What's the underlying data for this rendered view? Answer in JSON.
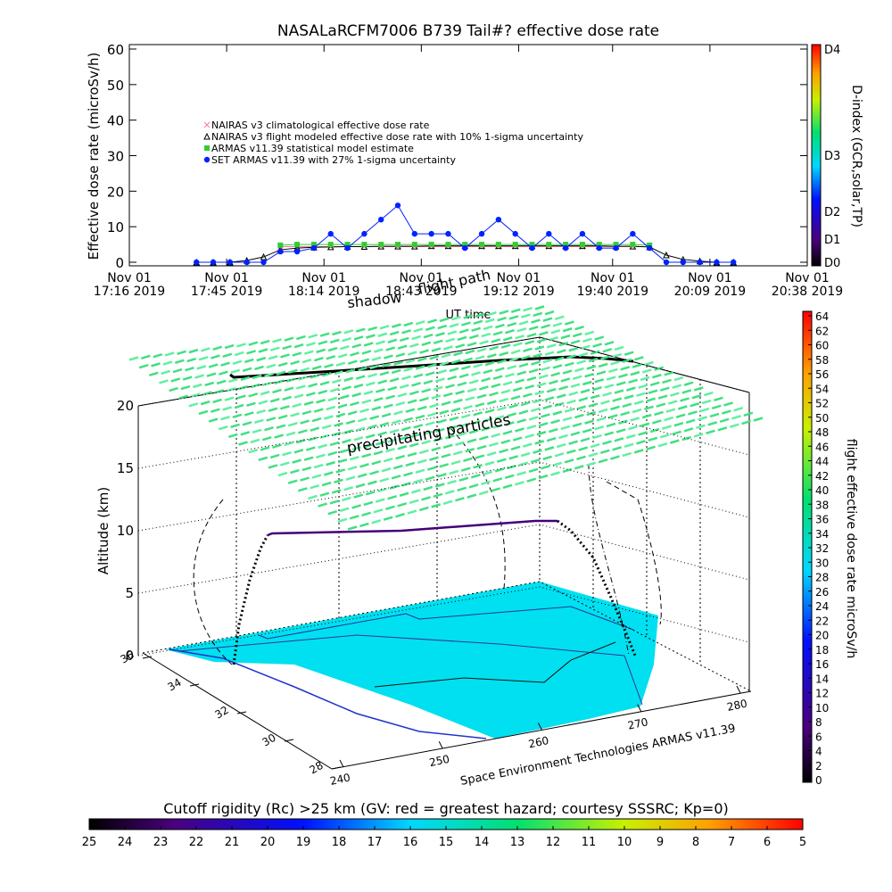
{
  "chart_data": [
    {
      "type": "line",
      "title": "NASALaRCFM7006  B739 Tail#? effective dose rate",
      "xlabel": "UT time",
      "ylabel": "Effective dose rate (microSv/h)",
      "x": [
        "17:36",
        "17:41",
        "17:46",
        "17:51",
        "17:56",
        "18:01",
        "18:06",
        "18:11",
        "18:16",
        "18:21",
        "18:26",
        "18:31",
        "18:36",
        "18:41",
        "18:46",
        "18:51",
        "18:56",
        "19:01",
        "19:06",
        "19:11",
        "19:16",
        "19:21",
        "19:26",
        "19:31",
        "19:36",
        "19:41",
        "19:46",
        "19:51",
        "19:56",
        "20:01",
        "20:06",
        "20:11",
        "20:16"
      ],
      "xlim": [
        "17:16",
        "20:38"
      ],
      "xticks": [
        {
          "value": "17:16",
          "label": "Nov 01\n17:16 2019"
        },
        {
          "value": "17:45",
          "label": "Nov 01\n17:45 2019"
        },
        {
          "value": "18:14",
          "label": "Nov 01\n18:14 2019"
        },
        {
          "value": "18:43",
          "label": "Nov 01\n18:43 2019"
        },
        {
          "value": "19:12",
          "label": "Nov 01\n19:12 2019"
        },
        {
          "value": "19:40",
          "label": "Nov 01\n19:40 2019"
        },
        {
          "value": "20:09",
          "label": "Nov 01\n20:09 2019"
        },
        {
          "value": "20:38",
          "label": "Nov 01\n20:38 2019"
        }
      ],
      "ylim": [
        0,
        60
      ],
      "yticks": [
        0,
        10,
        20,
        30,
        40,
        50,
        60
      ],
      "legend": "upper left",
      "series": [
        {
          "name": "NAIRAS v3 climatological effective dose rate",
          "color": "#ff7799",
          "marker": "x",
          "values": [
            null,
            null,
            null,
            null,
            null,
            4.4,
            4.4,
            4.4,
            4.4,
            4.4,
            4.4,
            4.4,
            4.4,
            4.4,
            4.4,
            4.4,
            4.4,
            4.4,
            4.4,
            4.4,
            4.4,
            4.4,
            4.4,
            4.4,
            4.4,
            4.4,
            4.4,
            4.4,
            null,
            null,
            null,
            null,
            null
          ]
        },
        {
          "name": "NAIRAS v3 flight modeled effective dose rate with 10% 1-sigma uncertainty",
          "color": "#000000",
          "marker": "triangle",
          "values": [
            0,
            0,
            0,
            0.5,
            1.5,
            3.5,
            4,
            4.2,
            4.3,
            4.4,
            4.4,
            4.5,
            4.5,
            4.5,
            4.6,
            4.6,
            4.6,
            4.6,
            4.6,
            4.6,
            4.6,
            4.6,
            4.6,
            4.6,
            4.6,
            4.5,
            4.5,
            4.3,
            2,
            0.8,
            0.3,
            0,
            0
          ]
        },
        {
          "name": "ARMAS v11.39 statistical model estimate",
          "color": "#33cc33",
          "marker": "square",
          "values": [
            null,
            null,
            null,
            null,
            null,
            4.8,
            5,
            5,
            5,
            5,
            5,
            5,
            5,
            5,
            5,
            5,
            5,
            5,
            5,
            5,
            5,
            5,
            5,
            5,
            5,
            5,
            5,
            4.8,
            null,
            null,
            null,
            null,
            null
          ]
        },
        {
          "name": "SET ARMAS v11.39 with 27% 1-sigma uncertainty",
          "color": "#0022ff",
          "marker": "dot",
          "values": [
            0,
            0,
            0,
            0,
            0,
            3,
            3,
            4,
            8,
            4,
            8,
            12,
            16,
            8,
            8,
            8,
            4,
            8,
            12,
            8,
            4,
            8,
            4,
            8,
            4,
            4,
            8,
            4,
            0,
            0,
            0,
            0,
            0
          ]
        }
      ],
      "colorbar": {
        "title": "D-index (GCR,solar,TP)",
        "ticks": [
          "D0",
          "D1",
          "D2",
          "D3",
          "D4"
        ]
      }
    },
    {
      "type": "surface3d",
      "zlabel": "Altitude (km)",
      "zlim": [
        0,
        20
      ],
      "zticks": [
        0,
        5,
        10,
        15,
        20
      ],
      "ylim": [
        36,
        28
      ],
      "yticks": [
        36,
        34,
        32,
        30,
        28
      ],
      "xlim": [
        240,
        280
      ],
      "xticks": [
        240,
        250,
        260,
        270,
        280
      ],
      "annotations": [
        "shadow",
        "flight path",
        "precipitating particles",
        "Space Environment Technologies ARMAS v11.39"
      ],
      "colorbar": {
        "title": "flight effective dose rate microSv/h",
        "lim": [
          0,
          64
        ],
        "ticks": [
          0,
          2,
          4,
          6,
          8,
          10,
          12,
          14,
          16,
          18,
          20,
          22,
          24,
          26,
          28,
          30,
          32,
          34,
          36,
          38,
          40,
          42,
          44,
          46,
          48,
          50,
          52,
          54,
          56,
          58,
          60,
          62,
          64
        ]
      },
      "colorbar2": {
        "title": "Cutoff rigidity (Rc) >25 km (GV: red = greatest hazard; courtesy SSSRC; Kp=0)",
        "lim": [
          25,
          5
        ],
        "ticks": [
          25,
          24,
          23,
          22,
          21,
          20,
          19,
          18,
          17,
          16,
          15,
          14,
          13,
          12,
          11,
          10,
          9,
          8,
          7,
          6,
          5
        ]
      }
    }
  ]
}
